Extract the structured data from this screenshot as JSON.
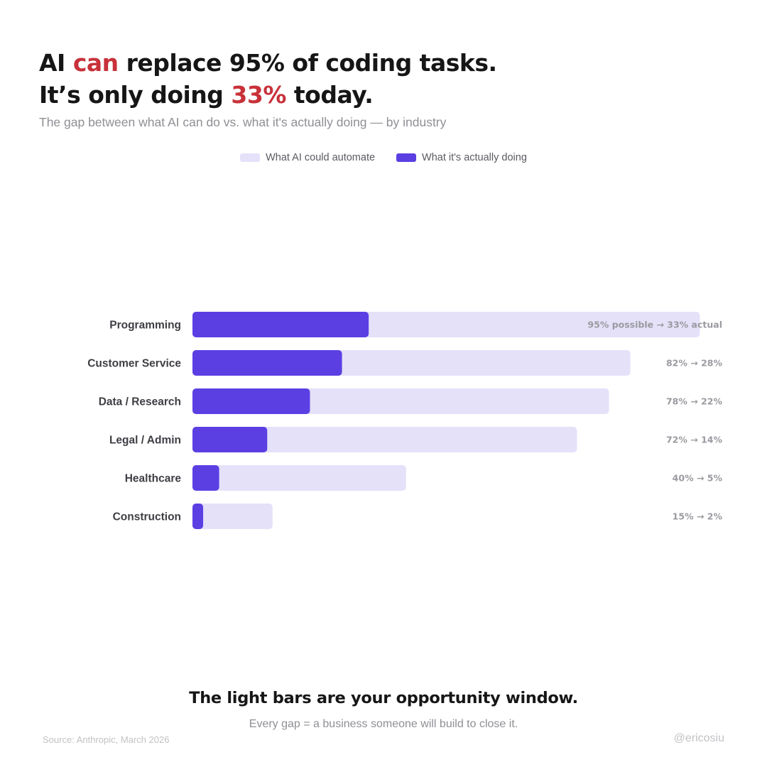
{
  "header": {
    "title_line1": [
      {
        "text": "AI ",
        "accent": false
      },
      {
        "text": "can",
        "accent": true
      },
      {
        "text": " replace 95% of coding tasks.",
        "accent": false
      }
    ],
    "title_line2": [
      {
        "text": "It’s only doing ",
        "accent": false
      },
      {
        "text": "33%",
        "accent": true
      },
      {
        "text": " today.",
        "accent": false
      }
    ],
    "subtitle": "The gap between what AI can do vs. what it's actually doing — by industry"
  },
  "colors": {
    "accent": "#c8313a",
    "potential": "#e4e1f9",
    "actual": "#5b3fe3"
  },
  "legend": {
    "items": [
      {
        "label": "What AI could automate",
        "color": "#e4e1f9"
      },
      {
        "label": "What it's actually doing",
        "color": "#5b3fe3"
      }
    ]
  },
  "chart_data": {
    "type": "bar",
    "orientation": "horizontal",
    "categories": [
      "Programming",
      "Customer Service",
      "Data / Research",
      "Legal / Admin",
      "Healthcare",
      "Construction"
    ],
    "series": [
      {
        "name": "What AI could automate",
        "values": [
          95,
          82,
          78,
          72,
          40,
          15
        ],
        "color": "#e4e1f9"
      },
      {
        "name": "What it's actually doing",
        "values": [
          33,
          28,
          22,
          14,
          5,
          2
        ],
        "color": "#5b3fe3"
      }
    ],
    "value_labels": [
      "95% possible → 33% actual",
      "82% → 28%",
      "78% → 22%",
      "72% → 14%",
      "40% → 5%",
      "15% → 2%"
    ],
    "xlim": [
      0,
      100
    ],
    "grid": false,
    "legend_position": "top-center"
  },
  "footer": {
    "headline": "The light bars are your opportunity window.",
    "subline": "Every gap = a business someone will build to close it.",
    "source": "Source: Anthropic, March 2026",
    "handle": "@ericosiu"
  }
}
